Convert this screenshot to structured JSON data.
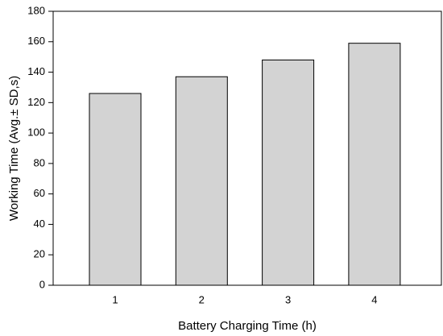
{
  "chart_data": {
    "type": "bar",
    "x_label": "Battery Charging Time (h)",
    "y_label": "Working Time (Avg.± SD,s)",
    "categories": [
      "1",
      "2",
      "3",
      "4"
    ],
    "values": [
      126,
      137,
      148,
      159
    ],
    "color": "#d3d3d3",
    "ylim": [
      0,
      180
    ],
    "yticks": [
      0,
      20,
      40,
      60,
      80,
      100,
      120,
      140,
      160,
      180
    ]
  }
}
